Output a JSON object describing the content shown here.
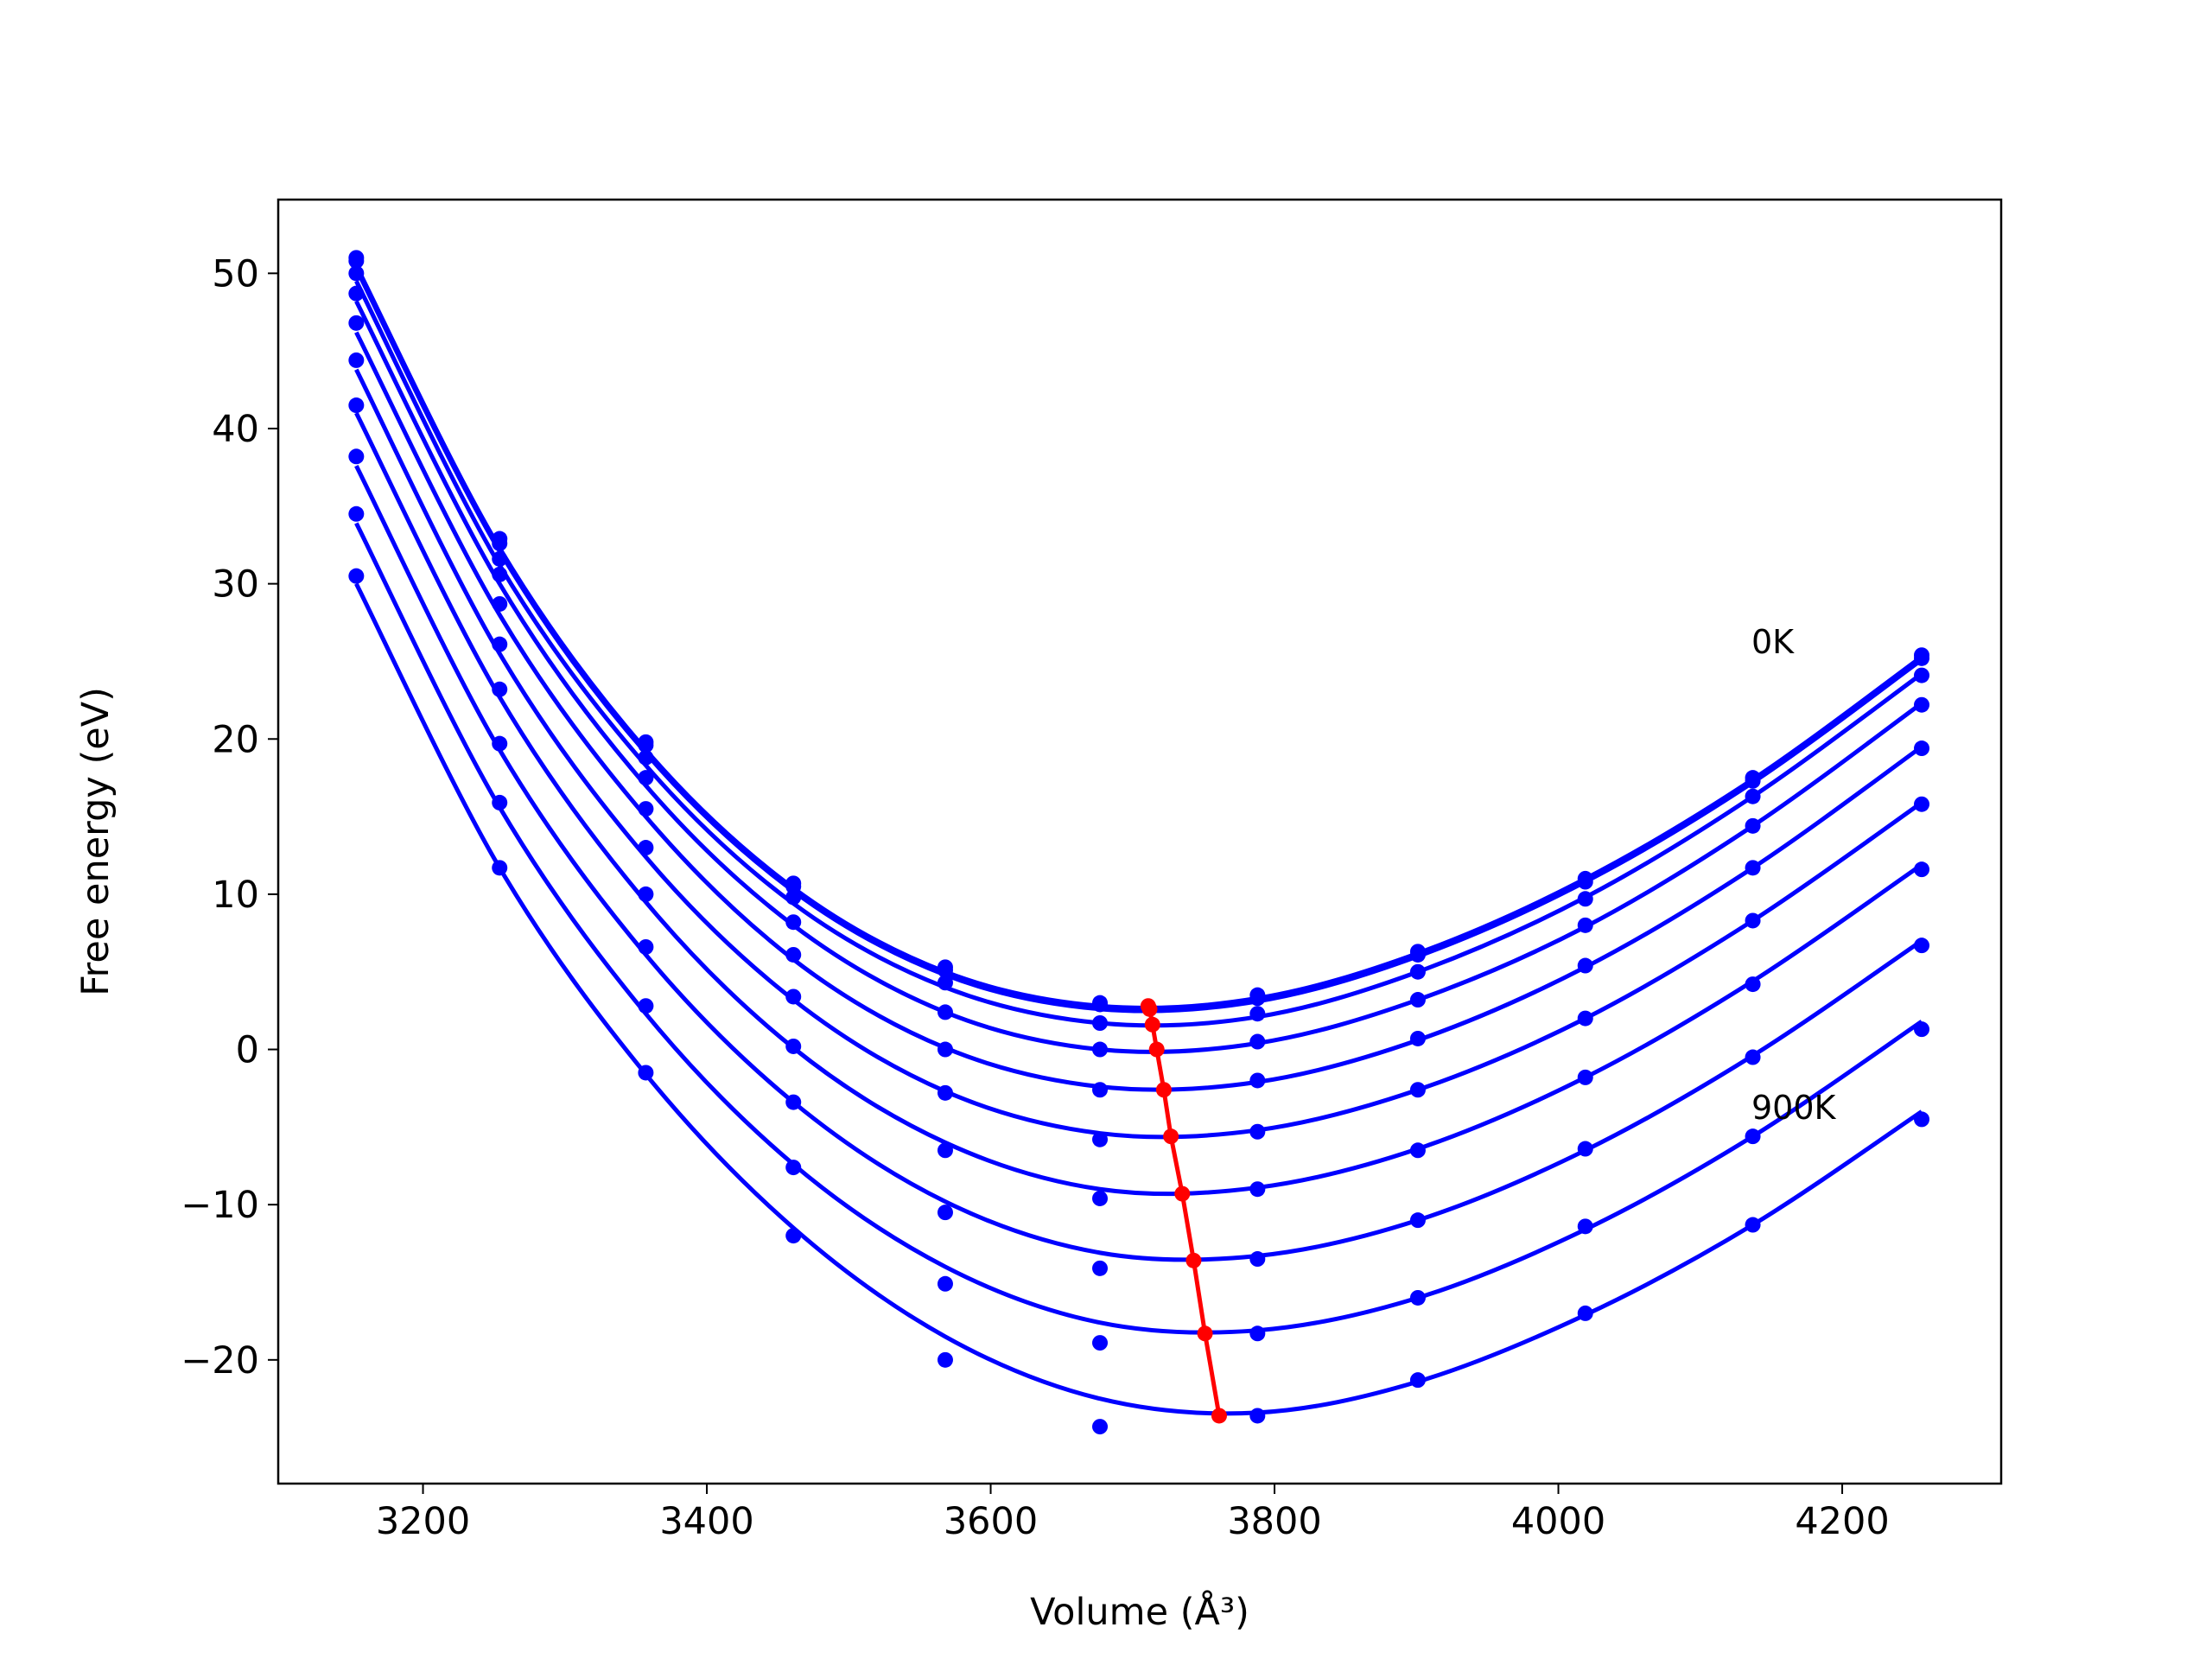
{
  "chart_data": {
    "type": "line",
    "xlabel": "Volume (Å³)",
    "ylabel": "Free energy (eV)",
    "x": [
      3153,
      3254,
      3357,
      3461,
      3568,
      3677,
      3788,
      3901,
      4019,
      4137,
      4256
    ],
    "series": [
      {
        "color": "#0000ff",
        "values": [
          51.0,
          32.9,
          19.8,
          10.7,
          5.3,
          3.0,
          3.5,
          6.3,
          11.0,
          17.5,
          25.4
        ],
        "fit": [
          50.5,
          32.3,
          19.3,
          10.4,
          5.0,
          2.8,
          3.3,
          6.2,
          11.0,
          17.4,
          25.3
        ]
      },
      {
        "color": "#0000ff",
        "values": [
          50.8,
          32.6,
          19.6,
          10.5,
          5.1,
          2.9,
          3.3,
          6.1,
          10.8,
          17.3,
          25.2
        ],
        "fit": [
          50.3,
          32.1,
          19.1,
          10.2,
          4.8,
          2.6,
          3.1,
          6.0,
          10.8,
          17.2,
          25.1
        ]
      },
      {
        "color": "#0000ff",
        "values": [
          50.0,
          31.6,
          18.8,
          9.8,
          4.3,
          1.7,
          2.3,
          5.0,
          9.7,
          16.3,
          24.1
        ],
        "fit": [
          49.5,
          31.2,
          18.3,
          9.4,
          4.0,
          1.7,
          2.1,
          5.0,
          9.8,
          16.3,
          24.2
        ]
      },
      {
        "color": "#0000ff",
        "values": [
          48.7,
          30.6,
          17.5,
          8.2,
          2.4,
          0.0,
          0.5,
          3.2,
          8.0,
          14.4,
          22.2
        ],
        "fit": [
          48.2,
          30.0,
          17.0,
          8.0,
          2.4,
          0.0,
          0.4,
          3.2,
          7.9,
          14.4,
          22.3
        ]
      },
      {
        "color": "#0000ff",
        "values": [
          46.8,
          28.7,
          15.5,
          6.1,
          0.0,
          -2.6,
          -2.0,
          0.7,
          5.4,
          11.7,
          19.4
        ],
        "fit": [
          46.2,
          28.0,
          15.0,
          5.8,
          0.1,
          -2.4,
          -2.1,
          0.6,
          5.3,
          11.7,
          19.5
        ]
      },
      {
        "color": "#0000ff",
        "values": [
          44.4,
          26.1,
          13.0,
          3.4,
          -2.8,
          -5.8,
          -5.3,
          -2.6,
          2.0,
          8.3,
          15.8
        ],
        "fit": [
          43.8,
          25.5,
          12.4,
          3.2,
          -2.7,
          -5.4,
          -5.2,
          -2.6,
          2.0,
          8.3,
          15.9
        ]
      },
      {
        "color": "#0000ff",
        "values": [
          41.5,
          23.2,
          10.0,
          0.2,
          -6.5,
          -9.6,
          -9.0,
          -6.5,
          -1.8,
          4.2,
          11.6
        ],
        "fit": [
          41.0,
          22.7,
          9.5,
          0.1,
          -6.0,
          -9.0,
          -8.9,
          -6.4,
          -1.8,
          4.4,
          11.9
        ]
      },
      {
        "color": "#0000ff",
        "values": [
          38.2,
          19.7,
          6.6,
          -3.4,
          -10.5,
          -14.1,
          -13.5,
          -11.0,
          -6.4,
          -0.5,
          6.7
        ],
        "fit": [
          37.6,
          19.3,
          6.1,
          -3.4,
          -9.8,
          -13.1,
          -13.3,
          -11.0,
          -6.5,
          -0.4,
          7.0
        ]
      },
      {
        "color": "#0000ff",
        "values": [
          34.5,
          15.9,
          2.8,
          -7.6,
          -15.1,
          -18.9,
          -18.3,
          -16.0,
          -11.4,
          -5.6,
          1.3
        ],
        "fit": [
          33.9,
          15.6,
          2.3,
          -7.4,
          -14.0,
          -17.6,
          -18.1,
          -16.0,
          -11.6,
          -5.6,
          1.8
        ]
      },
      {
        "color": "#0000ff",
        "values": [
          30.5,
          11.7,
          -1.5,
          -12.0,
          -20.0,
          -24.3,
          -23.6,
          -21.3,
          -17.0,
          -11.3,
          -4.5
        ],
        "fit": [
          30.0,
          11.7,
          -1.6,
          -11.5,
          -18.5,
          -22.5,
          -23.4,
          -21.4,
          -17.1,
          -11.3,
          -4.0
        ]
      }
    ],
    "minima": {
      "color": "#ff0000",
      "x": [
        3711,
        3712,
        3714,
        3717,
        3722,
        3727,
        3735,
        3743,
        3751,
        3761
      ],
      "values": [
        2.8,
        2.6,
        1.6,
        0.0,
        -2.6,
        -5.6,
        -9.3,
        -13.6,
        -18.3,
        -23.6
      ]
    },
    "annotations": [
      "0K",
      "900K"
    ],
    "xlim": [
      3098,
      4312
    ],
    "ylim": [
      -27.97,
      54.75
    ],
    "xticks": [
      3200,
      3400,
      3600,
      3800,
      4000,
      4200
    ],
    "yticks": [
      {
        "value": -20,
        "label": "−20"
      },
      {
        "value": -10,
        "label": "−10"
      },
      0,
      10,
      20,
      30,
      40,
      50
    ],
    "grid": false
  }
}
